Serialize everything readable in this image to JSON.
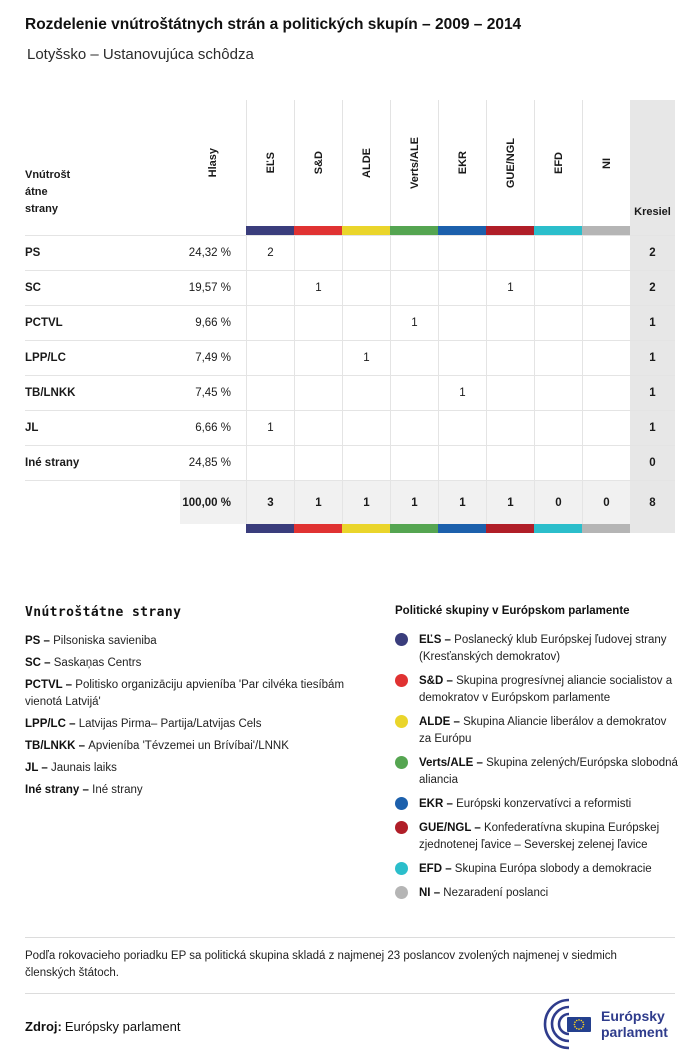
{
  "header": {
    "title": "Rozdelenie vnútroštátnych strán a politických skupín – 2009 – 2014",
    "subtitle": "Lotyšsko – Ustanovujúca schôdza"
  },
  "table": {
    "party_col_header": "Vnútroštátne strany",
    "votes_col_header": "Hlasy",
    "seats_col_header": "Kresiel",
    "groups": [
      {
        "id": "els",
        "name": "EĽS",
        "color": "#3A3D7C"
      },
      {
        "id": "sd",
        "name": "S&D",
        "color": "#E03232"
      },
      {
        "id": "alde",
        "name": "ALDE",
        "color": "#EAD52B"
      },
      {
        "id": "verts-ale",
        "name": "Verts/ALE",
        "color": "#55A551"
      },
      {
        "id": "ekr",
        "name": "EKR",
        "color": "#1C60AC"
      },
      {
        "id": "gue-ngl",
        "name": "GUE/NGL",
        "color": "#B01E28"
      },
      {
        "id": "efd",
        "name": "EFD",
        "color": "#2BBECB"
      },
      {
        "id": "ni",
        "name": "NI",
        "color": "#B5B5B5"
      }
    ],
    "rows": [
      {
        "party": "PS",
        "votes": "24,32 %",
        "cells": [
          "2",
          "",
          "",
          "",
          "",
          "",
          "",
          ""
        ],
        "seats": "2"
      },
      {
        "party": "SC",
        "votes": "19,57 %",
        "cells": [
          "",
          "1",
          "",
          "",
          "",
          "1",
          "",
          ""
        ],
        "seats": "2"
      },
      {
        "party": "PCTVL",
        "votes": "9,66 %",
        "cells": [
          "",
          "",
          "",
          "1",
          "",
          "",
          "",
          ""
        ],
        "seats": "1"
      },
      {
        "party": "LPP/LC",
        "votes": "7,49 %",
        "cells": [
          "",
          "",
          "1",
          "",
          "",
          "",
          "",
          ""
        ],
        "seats": "1"
      },
      {
        "party": "TB/LNKK",
        "votes": "7,45 %",
        "cells": [
          "",
          "",
          "",
          "",
          "1",
          "",
          "",
          ""
        ],
        "seats": "1"
      },
      {
        "party": "JL",
        "votes": "6,66 %",
        "cells": [
          "1",
          "",
          "",
          "",
          "",
          "",
          "",
          ""
        ],
        "seats": "1"
      },
      {
        "party": "Iné strany",
        "votes": "24,85 %",
        "cells": [
          "",
          "",
          "",
          "",
          "",
          "",
          "",
          ""
        ],
        "seats": "0"
      }
    ],
    "total": {
      "party": "",
      "votes": "100,00 %",
      "cells": [
        "3",
        "1",
        "1",
        "1",
        "1",
        "1",
        "0",
        "0"
      ],
      "seats": "8"
    }
  },
  "legend_parties": {
    "heading": "Vnútroštátne strany",
    "items": [
      {
        "abbr": "PS",
        "name": "Pilsoniska savieniba"
      },
      {
        "abbr": "SC",
        "name": "Saskaņas Centrs"
      },
      {
        "abbr": "PCTVL",
        "name": "Politisko organizāciju apvieníba 'Par cilvéka tiesíbám vienotá Latvijá'"
      },
      {
        "abbr": "LPP/LC",
        "name": "Latvijas Pirma– Partija/Latvijas Cels"
      },
      {
        "abbr": "TB/LNKK",
        "name": "Apvieníba 'Tévzemei un Brívíbai'/LNNK"
      },
      {
        "abbr": "JL",
        "name": "Jaunais laiks"
      },
      {
        "abbr": "Iné strany",
        "name": "Iné strany"
      }
    ]
  },
  "legend_groups": {
    "heading": "Politické skupiny v Európskom parlamente",
    "items": [
      {
        "id": "els",
        "abbr": "EĽS",
        "name": "Poslanecký klub Európskej ľudovej strany (Kresťanských demokratov)"
      },
      {
        "id": "sd",
        "abbr": "S&D",
        "name": "Skupina progresívnej aliancie socialistov a demokratov v Európskom parlamente"
      },
      {
        "id": "alde",
        "abbr": "ALDE",
        "name": "Skupina Aliancie liberálov a demokratov za Európu"
      },
      {
        "id": "verts-ale",
        "abbr": "Verts/ALE",
        "name": "Skupina zelených/Európska slobodná aliancia"
      },
      {
        "id": "ekr",
        "abbr": "EKR",
        "name": "Európski konzervatívci a reformisti"
      },
      {
        "id": "gue-ngl",
        "abbr": "GUE/NGL",
        "name": "Konfederatívna skupina Európskej zjednotenej ľavice – Severskej zelenej ľavice"
      },
      {
        "id": "efd",
        "abbr": "EFD",
        "name": "Skupina Európa slobody a demokracie"
      },
      {
        "id": "ni",
        "abbr": "NI",
        "name": "Nezaradení poslanci"
      }
    ]
  },
  "note": "Podľa rokovacieho poriadku EP sa politická skupina skladá z najmenej 23 poslancov zvolených najmenej v siedmich členských štátoch.",
  "source": {
    "label": "Zdroj:",
    "value": "Európsky parlament"
  },
  "logo": {
    "text": "Európsky parlament"
  },
  "chart_data": {
    "type": "table",
    "title": "Rozdelenie vnútroštátnych strán a politických skupín – 2009 – 2014",
    "subtitle": "Lotyšsko – Ustanovujúca schôdza",
    "columns": [
      "Vnútroštátne strany",
      "Hlasy",
      "EĽS",
      "S&D",
      "ALDE",
      "Verts/ALE",
      "EKR",
      "GUE/NGL",
      "EFD",
      "NI",
      "Kresiel"
    ],
    "rows": [
      [
        "PS",
        "24,32 %",
        2,
        null,
        null,
        null,
        null,
        null,
        null,
        null,
        2
      ],
      [
        "SC",
        "19,57 %",
        null,
        1,
        null,
        null,
        null,
        1,
        null,
        null,
        2
      ],
      [
        "PCTVL",
        "9,66 %",
        null,
        null,
        null,
        1,
        null,
        null,
        null,
        null,
        1
      ],
      [
        "LPP/LC",
        "7,49 %",
        null,
        null,
        1,
        null,
        null,
        null,
        null,
        null,
        1
      ],
      [
        "TB/LNKK",
        "7,45 %",
        null,
        null,
        null,
        null,
        1,
        null,
        null,
        null,
        1
      ],
      [
        "JL",
        "6,66 %",
        1,
        null,
        null,
        null,
        null,
        null,
        null,
        null,
        1
      ],
      [
        "Iné strany",
        "24,85 %",
        null,
        null,
        null,
        null,
        null,
        null,
        null,
        null,
        0
      ],
      [
        "",
        "100,00 %",
        3,
        1,
        1,
        1,
        1,
        1,
        0,
        0,
        8
      ]
    ],
    "group_colors": {
      "EĽS": "#3A3D7C",
      "S&D": "#E03232",
      "ALDE": "#EAD52B",
      "Verts/ALE": "#55A551",
      "EKR": "#1C60AC",
      "GUE/NGL": "#B01E28",
      "EFD": "#2BBECB",
      "NI": "#B5B5B5"
    }
  }
}
